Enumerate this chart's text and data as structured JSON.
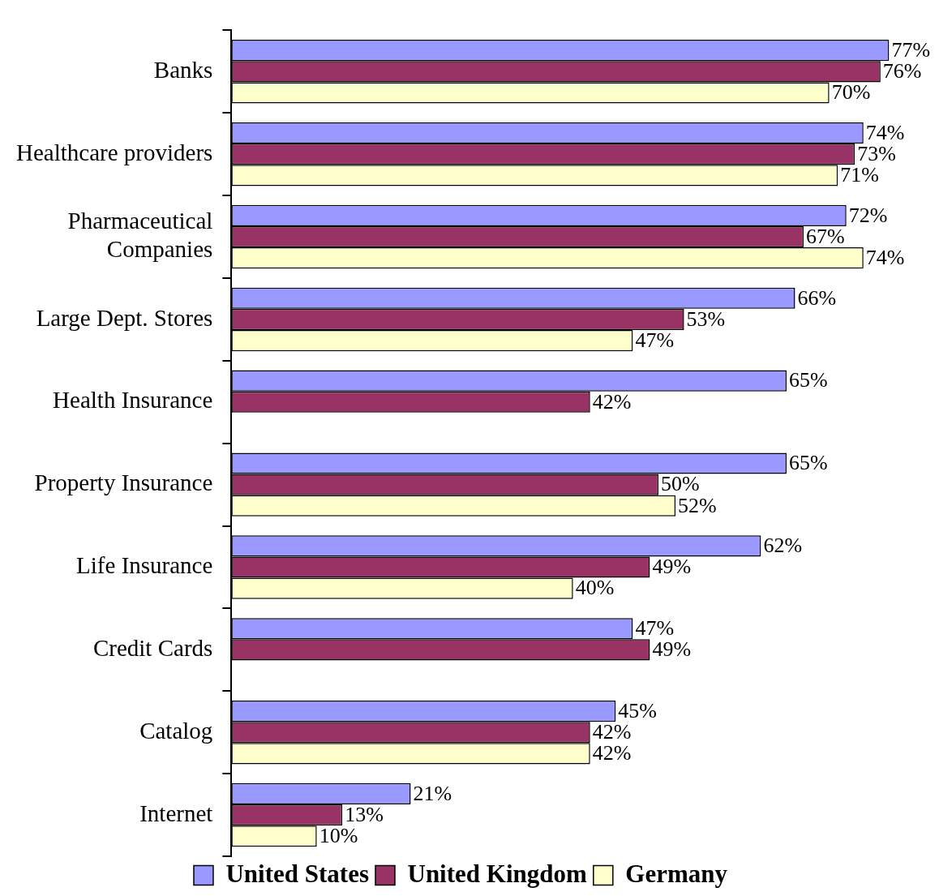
{
  "chart_data": {
    "type": "bar",
    "orientation": "horizontal",
    "legend": "bottom",
    "categories": [
      "Banks",
      "Healthcare providers",
      "Pharmaceutical Companies",
      "Large Dept. Stores",
      "Health Insurance",
      "Property Insurance",
      "Life Insurance",
      "Credit Cards",
      "Catalog",
      "Internet"
    ],
    "series": [
      {
        "name": "United States",
        "color": "#9999ff",
        "values": [
          77,
          74,
          72,
          66,
          65,
          65,
          62,
          47,
          45,
          21
        ],
        "value_labels": [
          "77%",
          "74%",
          "72%",
          "66%",
          "65%",
          "65%",
          "62%",
          "47%",
          "45%",
          "21%"
        ]
      },
      {
        "name": "United Kingdom",
        "color": "#993366",
        "values": [
          76,
          73,
          67,
          53,
          42,
          50,
          49,
          49,
          42,
          13
        ],
        "value_labels": [
          "76%",
          "73%",
          "67%",
          "53%",
          "42%",
          "50%",
          "49%",
          "49%",
          "42%",
          "13%"
        ]
      },
      {
        "name": "Germany",
        "color": "#ffffcc",
        "values": [
          70,
          71,
          74,
          47,
          null,
          52,
          40,
          null,
          42,
          10
        ],
        "value_labels": [
          "70%",
          "71%",
          "74%",
          "47%",
          null,
          "52%",
          "40%",
          null,
          "42%",
          "10%"
        ]
      }
    ]
  }
}
